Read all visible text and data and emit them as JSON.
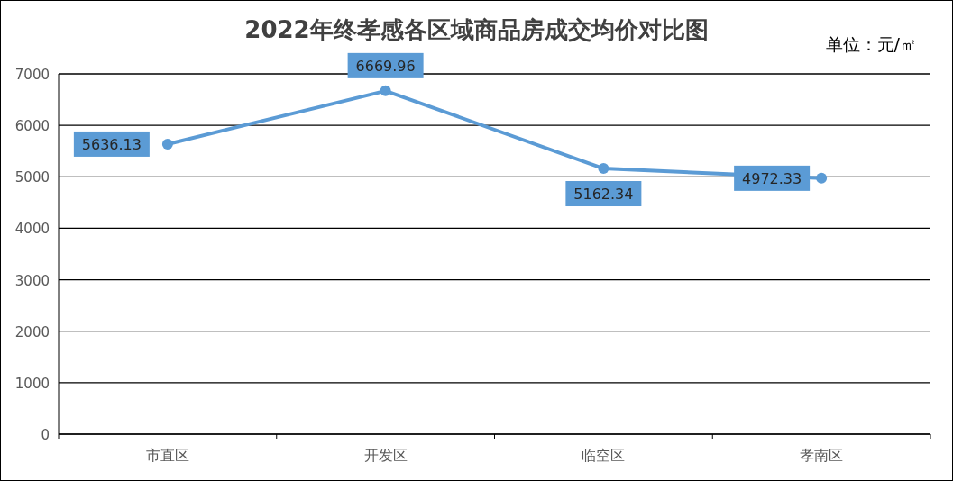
{
  "chart_data": {
    "type": "line",
    "title": "2022年终孝感各区域商品房成交均价对比图",
    "annotations": [
      "单位：元/㎡"
    ],
    "categories": [
      "市直区",
      "开发区",
      "临空区",
      "孝南区"
    ],
    "series": [
      {
        "color": "#5b9bd5",
        "values": [
          5636.13,
          6669.96,
          5162.34,
          4972.33
        ]
      }
    ],
    "ylim": [
      0,
      7000
    ],
    "yticks": [
      0,
      1000,
      2000,
      3000,
      4000,
      5000,
      6000,
      7000
    ],
    "grid": "y",
    "marker": "circle",
    "line_style": "solid",
    "data_labels": true
  }
}
